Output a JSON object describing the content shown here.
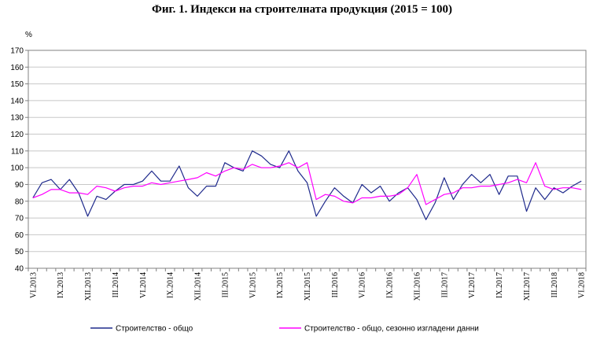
{
  "chart_data": {
    "type": "line",
    "title": "Фиг. 1. Индекси на строителната продукция (2015 = 100)",
    "ylabel": "%",
    "ylim": [
      40,
      170
    ],
    "yticks": [
      40,
      50,
      60,
      70,
      80,
      90,
      100,
      110,
      120,
      130,
      140,
      150,
      160,
      170
    ],
    "grid": true,
    "legend_position": "bottom",
    "x": [
      "VI.2013",
      "VII.2013",
      "VIII.2013",
      "IX.2013",
      "X.2013",
      "XI.2013",
      "XII.2013",
      "I.2014",
      "II.2014",
      "III.2014",
      "IV.2014",
      "V.2014",
      "VI.2014",
      "VII.2014",
      "VIII.2014",
      "IX.2014",
      "X.2014",
      "XI.2014",
      "XII.2014",
      "I.2015",
      "II.2015",
      "III.2015",
      "IV.2015",
      "V.2015",
      "VI.2015",
      "VII.2015",
      "VIII.2015",
      "IX.2015",
      "X.2015",
      "XI.2015",
      "XII.2015",
      "I.2016",
      "II.2016",
      "III.2016",
      "IV.2016",
      "V.2016",
      "VI.2016",
      "VII.2016",
      "VIII.2016",
      "IX.2016",
      "X.2016",
      "XI.2016",
      "XII.2016",
      "I.2017",
      "II.2017",
      "III.2017",
      "IV.2017",
      "V.2017",
      "VI.2017",
      "VII.2017",
      "VIII.2017",
      "IX.2017",
      "X.2017",
      "XI.2017",
      "XII.2017",
      "I.2018",
      "II.2018",
      "III.2018",
      "IV.2018",
      "V.2018",
      "VI.2018"
    ],
    "x_tick_labels": [
      "VI.2013",
      "IX.2013",
      "XII.2013",
      "III.2014",
      "VI.2014",
      "IX.2014",
      "XII.2014",
      "III.2015",
      "VI.2015",
      "IX.2015",
      "XII.2015",
      "III.2016",
      "VI.2016",
      "IX.2016",
      "XII.2016",
      "III.2017",
      "VI.2017",
      "IX.2017",
      "XII.2017",
      "III.2018",
      "VI.2018"
    ],
    "series": [
      {
        "name": "Строителство - общо",
        "color": "#1f2a8c",
        "values": [
          82,
          91,
          93,
          87,
          93,
          85,
          71,
          83,
          81,
          86,
          90,
          90,
          92,
          98,
          92,
          92,
          101,
          88,
          83,
          89,
          89,
          103,
          100,
          98,
          110,
          107,
          102,
          100,
          110,
          98,
          91,
          71,
          80,
          88,
          83,
          79,
          90,
          85,
          89,
          80,
          85,
          88,
          81,
          69,
          79,
          94,
          81,
          90,
          96,
          91,
          96,
          84,
          95,
          95,
          74,
          88,
          81,
          88,
          85,
          89,
          92
        ]
      },
      {
        "name": "Строителство - общо, сезонно изгладени данни",
        "color": "#ff00ff",
        "values": [
          82,
          84,
          87,
          87,
          85,
          85,
          84,
          89,
          88,
          86,
          88,
          89,
          89,
          91,
          90,
          91,
          92,
          93,
          94,
          97,
          95,
          98,
          100,
          99,
          102,
          100,
          100,
          101,
          103,
          100,
          103,
          81,
          84,
          83,
          80,
          79,
          82,
          82,
          83,
          83,
          84,
          88,
          96,
          78,
          81,
          84,
          85,
          88,
          88,
          89,
          89,
          90,
          91,
          93,
          91,
          103,
          89,
          87,
          88,
          88,
          87
        ]
      }
    ]
  }
}
